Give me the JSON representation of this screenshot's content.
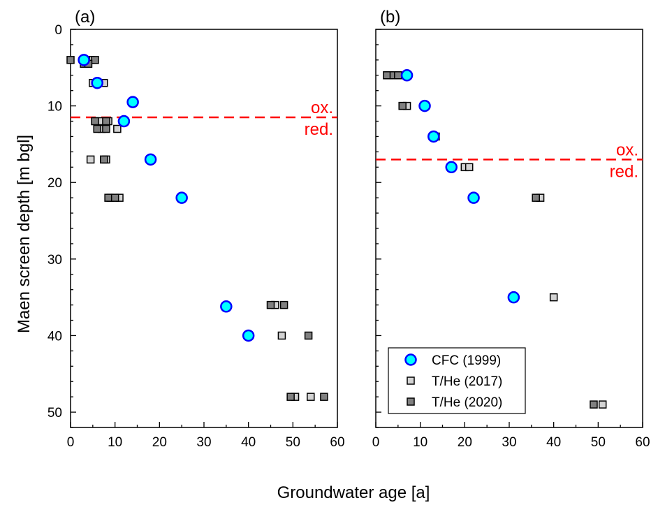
{
  "chart_data": {
    "type": "scatter",
    "xlabel": "Groundwater age [a]",
    "ylabel": "Maen screen depth [m bgl]",
    "xlim": [
      0,
      60
    ],
    "ylim": [
      52,
      0
    ],
    "y_inverted": true,
    "xticks": [
      "0",
      "10",
      "20",
      "30",
      "40",
      "50",
      "60"
    ],
    "yticks": [
      "0",
      "10",
      "20",
      "30",
      "40",
      "50"
    ],
    "legend": {
      "placement": "bottom-right of panel (b)",
      "entries": [
        {
          "label": "CFC (1999)",
          "series": 0
        },
        {
          "label": "T/He (2017)",
          "series": 1
        },
        {
          "label": "T/He (2020)",
          "series": 2
        }
      ]
    },
    "series_styles": [
      {
        "name": "CFC (1999)",
        "marker": "circle",
        "fill": "#00FFFF",
        "stroke": "#0000FF"
      },
      {
        "name": "T/He (2017)",
        "marker": "square",
        "fill": "#D3D3D3",
        "stroke": "#000000"
      },
      {
        "name": "T/He (2020)",
        "marker": "square",
        "fill": "#808080",
        "stroke": "#000000"
      }
    ],
    "redox_line_color": "#FF0000",
    "panels": [
      {
        "label": "(a)",
        "redox_depth": 11.5,
        "oxidized_label": "ox.",
        "reduced_label": "red.",
        "series": [
          {
            "name": "CFC (1999)",
            "points": [
              [
                3,
                4
              ],
              [
                6,
                7
              ],
              [
                14,
                9.5
              ],
              [
                12,
                12
              ],
              [
                18,
                17
              ],
              [
                25,
                22
              ],
              [
                35,
                36.2
              ],
              [
                40,
                40
              ]
            ]
          },
          {
            "name": "T/He (2017)",
            "points": [
              [
                4.5,
                4
              ],
              [
                5,
                7
              ],
              [
                7.5,
                7
              ],
              [
                6.5,
                12
              ],
              [
                8.5,
                12
              ],
              [
                7,
                13
              ],
              [
                10.5,
                13
              ],
              [
                4.5,
                17
              ],
              [
                8,
                17
              ],
              [
                9,
                22
              ],
              [
                11,
                22
              ],
              [
                46,
                36
              ],
              [
                47.5,
                40
              ],
              [
                50.5,
                48
              ],
              [
                54,
                48
              ]
            ]
          },
          {
            "name": "T/He (2020)",
            "points": [
              [
                0,
                4
              ],
              [
                3.5,
                4
              ],
              [
                5.5,
                4
              ],
              [
                3,
                4.5
              ],
              [
                4,
                4.5
              ],
              [
                6,
                7
              ],
              [
                5.5,
                12
              ],
              [
                8,
                12
              ],
              [
                6,
                13
              ],
              [
                8,
                13
              ],
              [
                7.5,
                17
              ],
              [
                8.5,
                22
              ],
              [
                10,
                22
              ],
              [
                45,
                36
              ],
              [
                48,
                36
              ],
              [
                53.5,
                40
              ],
              [
                49.5,
                48
              ],
              [
                57,
                48
              ]
            ]
          }
        ]
      },
      {
        "label": "(b)",
        "redox_depth": 17,
        "oxidized_label": "ox.",
        "reduced_label": "red.",
        "series": [
          {
            "name": "CFC (1999)",
            "points": [
              [
                7,
                6
              ],
              [
                11,
                10
              ],
              [
                13,
                14
              ],
              [
                17,
                18
              ],
              [
                22,
                22
              ],
              [
                31,
                35
              ]
            ]
          },
          {
            "name": "T/He (2017)",
            "points": [
              [
                3,
                6
              ],
              [
                7,
                10
              ],
              [
                13,
                14
              ],
              [
                20,
                18
              ],
              [
                21,
                18
              ],
              [
                37,
                22
              ],
              [
                40,
                35
              ],
              [
                51,
                49
              ]
            ]
          },
          {
            "name": "T/He (2020)",
            "points": [
              [
                2.5,
                6
              ],
              [
                4,
                6
              ],
              [
                5,
                6
              ],
              [
                6,
                10
              ],
              [
                13.5,
                14
              ],
              [
                36,
                22
              ],
              [
                49,
                49
              ]
            ]
          }
        ]
      }
    ]
  }
}
